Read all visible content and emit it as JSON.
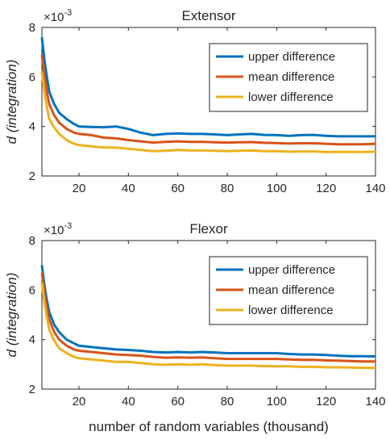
{
  "colors": {
    "upper": "#0072BD",
    "mean": "#D95319",
    "lower": "#EDB120",
    "axis": "#262626",
    "grid": "#e6e6e6"
  },
  "chart_data": [
    {
      "type": "line",
      "title": "Extensor",
      "xlabel": "",
      "ylabel": "d (integration)",
      "y_multiplier": "×10",
      "y_multiplier_exp": "-3",
      "xlim": [
        5,
        140
      ],
      "ylim": [
        2,
        8
      ],
      "xticks": [
        20,
        40,
        60,
        80,
        100,
        120,
        140
      ],
      "xtick_labels": [
        "20",
        "40",
        "60",
        "80",
        "100",
        "120",
        "140"
      ],
      "yticks": [
        2,
        4,
        6,
        8
      ],
      "ytick_labels": [
        "2",
        "4",
        "6",
        "8"
      ],
      "legend_position": "top-right",
      "x": [
        5,
        6,
        7,
        8,
        10,
        12,
        15,
        18,
        20,
        25,
        30,
        35,
        40,
        45,
        50,
        55,
        60,
        65,
        70,
        75,
        80,
        85,
        90,
        95,
        100,
        105,
        110,
        115,
        120,
        125,
        130,
        135,
        140
      ],
      "series": [
        {
          "name": "upper difference",
          "key": "upper",
          "values": [
            7.6,
            6.7,
            6.0,
            5.4,
            4.9,
            4.55,
            4.3,
            4.1,
            4.0,
            3.98,
            3.97,
            4.0,
            3.9,
            3.75,
            3.65,
            3.7,
            3.72,
            3.7,
            3.7,
            3.68,
            3.65,
            3.68,
            3.7,
            3.66,
            3.65,
            3.62,
            3.65,
            3.66,
            3.62,
            3.6,
            3.6,
            3.6,
            3.6
          ]
        },
        {
          "name": "mean difference",
          "key": "mean",
          "values": [
            6.9,
            6.1,
            5.4,
            4.9,
            4.45,
            4.15,
            3.9,
            3.75,
            3.7,
            3.65,
            3.55,
            3.52,
            3.45,
            3.4,
            3.35,
            3.38,
            3.4,
            3.38,
            3.38,
            3.36,
            3.35,
            3.36,
            3.37,
            3.34,
            3.33,
            3.31,
            3.32,
            3.32,
            3.3,
            3.28,
            3.28,
            3.28,
            3.3
          ]
        },
        {
          "name": "lower difference",
          "key": "lower",
          "values": [
            6.2,
            5.4,
            4.8,
            4.3,
            3.95,
            3.7,
            3.45,
            3.3,
            3.25,
            3.2,
            3.15,
            3.15,
            3.1,
            3.05,
            3.0,
            3.02,
            3.05,
            3.03,
            3.03,
            3.02,
            3.0,
            3.02,
            3.03,
            3.0,
            3.0,
            2.98,
            2.99,
            2.99,
            2.97,
            2.97,
            2.97,
            2.97,
            2.98
          ]
        }
      ]
    },
    {
      "type": "line",
      "title": "Flexor",
      "xlabel": "number of random variables (thousand)",
      "ylabel": "d (integration)",
      "y_multiplier": "×10",
      "y_multiplier_exp": "-3",
      "xlim": [
        5,
        140
      ],
      "ylim": [
        2,
        8
      ],
      "xticks": [
        20,
        40,
        60,
        80,
        100,
        120,
        140
      ],
      "xtick_labels": [
        "20",
        "40",
        "60",
        "80",
        "100",
        "120",
        "140"
      ],
      "yticks": [
        2,
        4,
        6,
        8
      ],
      "ytick_labels": [
        "2",
        "4",
        "6",
        "8"
      ],
      "legend_position": "top-right",
      "x": [
        5,
        6,
        7,
        8,
        10,
        12,
        15,
        18,
        20,
        25,
        30,
        35,
        40,
        45,
        50,
        55,
        60,
        65,
        70,
        75,
        80,
        85,
        90,
        95,
        100,
        105,
        110,
        115,
        120,
        125,
        130,
        135,
        140
      ],
      "series": [
        {
          "name": "upper difference",
          "key": "upper",
          "values": [
            7.0,
            6.2,
            5.6,
            5.1,
            4.6,
            4.3,
            4.0,
            3.85,
            3.75,
            3.7,
            3.65,
            3.6,
            3.58,
            3.55,
            3.5,
            3.48,
            3.5,
            3.48,
            3.5,
            3.48,
            3.45,
            3.45,
            3.45,
            3.45,
            3.45,
            3.42,
            3.4,
            3.4,
            3.38,
            3.35,
            3.33,
            3.33,
            3.32
          ]
        },
        {
          "name": "mean difference",
          "key": "mean",
          "values": [
            6.7,
            5.9,
            5.3,
            4.8,
            4.3,
            4.0,
            3.75,
            3.6,
            3.55,
            3.5,
            3.45,
            3.4,
            3.38,
            3.35,
            3.3,
            3.27,
            3.28,
            3.27,
            3.28,
            3.25,
            3.22,
            3.22,
            3.22,
            3.22,
            3.22,
            3.2,
            3.18,
            3.18,
            3.16,
            3.15,
            3.13,
            3.12,
            3.12
          ]
        },
        {
          "name": "lower difference",
          "key": "lower",
          "values": [
            6.3,
            5.5,
            4.9,
            4.4,
            3.95,
            3.65,
            3.45,
            3.3,
            3.25,
            3.2,
            3.15,
            3.1,
            3.1,
            3.05,
            3.0,
            2.98,
            3.0,
            2.98,
            3.0,
            2.97,
            2.95,
            2.95,
            2.95,
            2.93,
            2.92,
            2.92,
            2.9,
            2.9,
            2.88,
            2.88,
            2.87,
            2.86,
            2.86
          ]
        }
      ]
    }
  ]
}
